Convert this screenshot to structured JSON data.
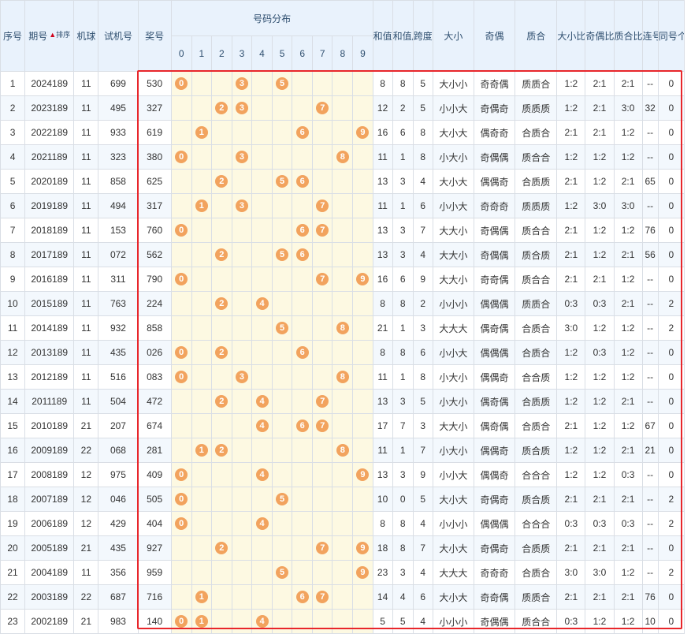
{
  "headers": {
    "seq": "序号",
    "period": "期号",
    "sort": "排序",
    "machine": "机球",
    "trial": "试机号",
    "award": "奖号",
    "dist": "号码分布",
    "digits": [
      "0",
      "1",
      "2",
      "3",
      "4",
      "5",
      "6",
      "7",
      "8",
      "9"
    ],
    "sum": "和值",
    "sum_tail": "和值尾",
    "span": "跨度",
    "size": "大小",
    "parity": "奇偶",
    "prime": "质合",
    "size_ratio": "大小比",
    "parity_ratio": "奇偶比",
    "prime_ratio": "质合比",
    "consec": "连号",
    "same_count": "同号个数"
  },
  "accent": {
    "ball": "#f2a35e",
    "highlight": "#e8262b",
    "header_bg": "#e9f2fc",
    "digit_bg": "#fdf9e2"
  },
  "rows": [
    {
      "seq": "1",
      "period": "2024189",
      "machine": "11",
      "trial": "699",
      "award": "530",
      "sum": "8",
      "tail": "8",
      "span": "5",
      "size": "大小小",
      "parity": "奇奇偶",
      "prime": "质质合",
      "sr": "1:2",
      "pr": "2:1",
      "qr": "2:1",
      "consec": "--",
      "same": "0"
    },
    {
      "seq": "2",
      "period": "2023189",
      "machine": "11",
      "trial": "495",
      "award": "327",
      "sum": "12",
      "tail": "2",
      "span": "5",
      "size": "小小大",
      "parity": "奇偶奇",
      "prime": "质质质",
      "sr": "1:2",
      "pr": "2:1",
      "qr": "3:0",
      "consec": "32",
      "same": "0"
    },
    {
      "seq": "3",
      "period": "2022189",
      "machine": "11",
      "trial": "933",
      "award": "619",
      "sum": "16",
      "tail": "6",
      "span": "8",
      "size": "大小大",
      "parity": "偶奇奇",
      "prime": "合质合",
      "sr": "2:1",
      "pr": "2:1",
      "qr": "1:2",
      "consec": "--",
      "same": "0"
    },
    {
      "seq": "4",
      "period": "2021189",
      "machine": "11",
      "trial": "323",
      "award": "380",
      "sum": "11",
      "tail": "1",
      "span": "8",
      "size": "小大小",
      "parity": "奇偶偶",
      "prime": "质合合",
      "sr": "1:2",
      "pr": "1:2",
      "qr": "1:2",
      "consec": "--",
      "same": "0"
    },
    {
      "seq": "5",
      "period": "2020189",
      "machine": "11",
      "trial": "858",
      "award": "625",
      "sum": "13",
      "tail": "3",
      "span": "4",
      "size": "大小大",
      "parity": "偶偶奇",
      "prime": "合质质",
      "sr": "2:1",
      "pr": "1:2",
      "qr": "2:1",
      "consec": "65",
      "same": "0"
    },
    {
      "seq": "6",
      "period": "2019189",
      "machine": "11",
      "trial": "494",
      "award": "317",
      "sum": "11",
      "tail": "1",
      "span": "6",
      "size": "小小大",
      "parity": "奇奇奇",
      "prime": "质质质",
      "sr": "1:2",
      "pr": "3:0",
      "qr": "3:0",
      "consec": "--",
      "same": "0"
    },
    {
      "seq": "7",
      "period": "2018189",
      "machine": "11",
      "trial": "153",
      "award": "760",
      "sum": "13",
      "tail": "3",
      "span": "7",
      "size": "大大小",
      "parity": "奇偶偶",
      "prime": "质合合",
      "sr": "2:1",
      "pr": "1:2",
      "qr": "1:2",
      "consec": "76",
      "same": "0"
    },
    {
      "seq": "8",
      "period": "2017189",
      "machine": "11",
      "trial": "072",
      "award": "562",
      "sum": "13",
      "tail": "3",
      "span": "4",
      "size": "大大小",
      "parity": "奇偶偶",
      "prime": "质合质",
      "sr": "2:1",
      "pr": "1:2",
      "qr": "2:1",
      "consec": "56",
      "same": "0"
    },
    {
      "seq": "9",
      "period": "2016189",
      "machine": "11",
      "trial": "311",
      "award": "790",
      "sum": "16",
      "tail": "6",
      "span": "9",
      "size": "大大小",
      "parity": "奇奇偶",
      "prime": "质合合",
      "sr": "2:1",
      "pr": "2:1",
      "qr": "1:2",
      "consec": "--",
      "same": "0"
    },
    {
      "seq": "10",
      "period": "2015189",
      "machine": "11",
      "trial": "763",
      "award": "224",
      "sum": "8",
      "tail": "8",
      "span": "2",
      "size": "小小小",
      "parity": "偶偶偶",
      "prime": "质质合",
      "sr": "0:3",
      "pr": "0:3",
      "qr": "2:1",
      "consec": "--",
      "same": "2"
    },
    {
      "seq": "11",
      "period": "2014189",
      "machine": "11",
      "trial": "932",
      "award": "858",
      "sum": "21",
      "tail": "1",
      "span": "3",
      "size": "大大大",
      "parity": "偶奇偶",
      "prime": "合质合",
      "sr": "3:0",
      "pr": "1:2",
      "qr": "1:2",
      "consec": "--",
      "same": "2"
    },
    {
      "seq": "12",
      "period": "2013189",
      "machine": "11",
      "trial": "435",
      "award": "026",
      "sum": "8",
      "tail": "8",
      "span": "6",
      "size": "小小大",
      "parity": "偶偶偶",
      "prime": "合质合",
      "sr": "1:2",
      "pr": "0:3",
      "qr": "1:2",
      "consec": "--",
      "same": "0"
    },
    {
      "seq": "13",
      "period": "2012189",
      "machine": "11",
      "trial": "516",
      "award": "083",
      "sum": "11",
      "tail": "1",
      "span": "8",
      "size": "小大小",
      "parity": "偶偶奇",
      "prime": "合合质",
      "sr": "1:2",
      "pr": "1:2",
      "qr": "1:2",
      "consec": "--",
      "same": "0"
    },
    {
      "seq": "14",
      "period": "2011189",
      "machine": "11",
      "trial": "504",
      "award": "472",
      "sum": "13",
      "tail": "3",
      "span": "5",
      "size": "小大小",
      "parity": "偶奇偶",
      "prime": "合质质",
      "sr": "1:2",
      "pr": "1:2",
      "qr": "2:1",
      "consec": "--",
      "same": "0"
    },
    {
      "seq": "15",
      "period": "2010189",
      "machine": "21",
      "trial": "207",
      "award": "674",
      "sum": "17",
      "tail": "7",
      "span": "3",
      "size": "大大小",
      "parity": "偶奇偶",
      "prime": "合质合",
      "sr": "2:1",
      "pr": "1:2",
      "qr": "1:2",
      "consec": "67",
      "same": "0"
    },
    {
      "seq": "16",
      "period": "2009189",
      "machine": "22",
      "trial": "068",
      "award": "281",
      "sum": "11",
      "tail": "1",
      "span": "7",
      "size": "小大小",
      "parity": "偶偶奇",
      "prime": "质合质",
      "sr": "1:2",
      "pr": "1:2",
      "qr": "2:1",
      "consec": "21",
      "same": "0"
    },
    {
      "seq": "17",
      "period": "2008189",
      "machine": "12",
      "trial": "975",
      "award": "409",
      "sum": "13",
      "tail": "3",
      "span": "9",
      "size": "小小大",
      "parity": "偶偶奇",
      "prime": "合合合",
      "sr": "1:2",
      "pr": "1:2",
      "qr": "0:3",
      "consec": "--",
      "same": "0"
    },
    {
      "seq": "18",
      "period": "2007189",
      "machine": "12",
      "trial": "046",
      "award": "505",
      "sum": "10",
      "tail": "0",
      "span": "5",
      "size": "大小大",
      "parity": "奇偶奇",
      "prime": "质合质",
      "sr": "2:1",
      "pr": "2:1",
      "qr": "2:1",
      "consec": "--",
      "same": "2"
    },
    {
      "seq": "19",
      "period": "2006189",
      "machine": "12",
      "trial": "429",
      "award": "404",
      "sum": "8",
      "tail": "8",
      "span": "4",
      "size": "小小小",
      "parity": "偶偶偶",
      "prime": "合合合",
      "sr": "0:3",
      "pr": "0:3",
      "qr": "0:3",
      "consec": "--",
      "same": "2"
    },
    {
      "seq": "20",
      "period": "2005189",
      "machine": "21",
      "trial": "435",
      "award": "927",
      "sum": "18",
      "tail": "8",
      "span": "7",
      "size": "大小大",
      "parity": "奇偶奇",
      "prime": "合质质",
      "sr": "2:1",
      "pr": "2:1",
      "qr": "2:1",
      "consec": "--",
      "same": "0"
    },
    {
      "seq": "21",
      "period": "2004189",
      "machine": "11",
      "trial": "356",
      "award": "959",
      "sum": "23",
      "tail": "3",
      "span": "4",
      "size": "大大大",
      "parity": "奇奇奇",
      "prime": "合质合",
      "sr": "3:0",
      "pr": "3:0",
      "qr": "1:2",
      "consec": "--",
      "same": "2"
    },
    {
      "seq": "22",
      "period": "2003189",
      "machine": "22",
      "trial": "687",
      "award": "716",
      "sum": "14",
      "tail": "4",
      "span": "6",
      "size": "大小大",
      "parity": "奇奇偶",
      "prime": "质质合",
      "sr": "2:1",
      "pr": "2:1",
      "qr": "2:1",
      "consec": "76",
      "same": "0"
    },
    {
      "seq": "23",
      "period": "2002189",
      "machine": "21",
      "trial": "983",
      "award": "140",
      "sum": "5",
      "tail": "5",
      "span": "4",
      "size": "小小小",
      "parity": "奇偶偶",
      "prime": "质合合",
      "sr": "0:3",
      "pr": "1:2",
      "qr": "1:2",
      "consec": "10",
      "same": "0"
    }
  ]
}
